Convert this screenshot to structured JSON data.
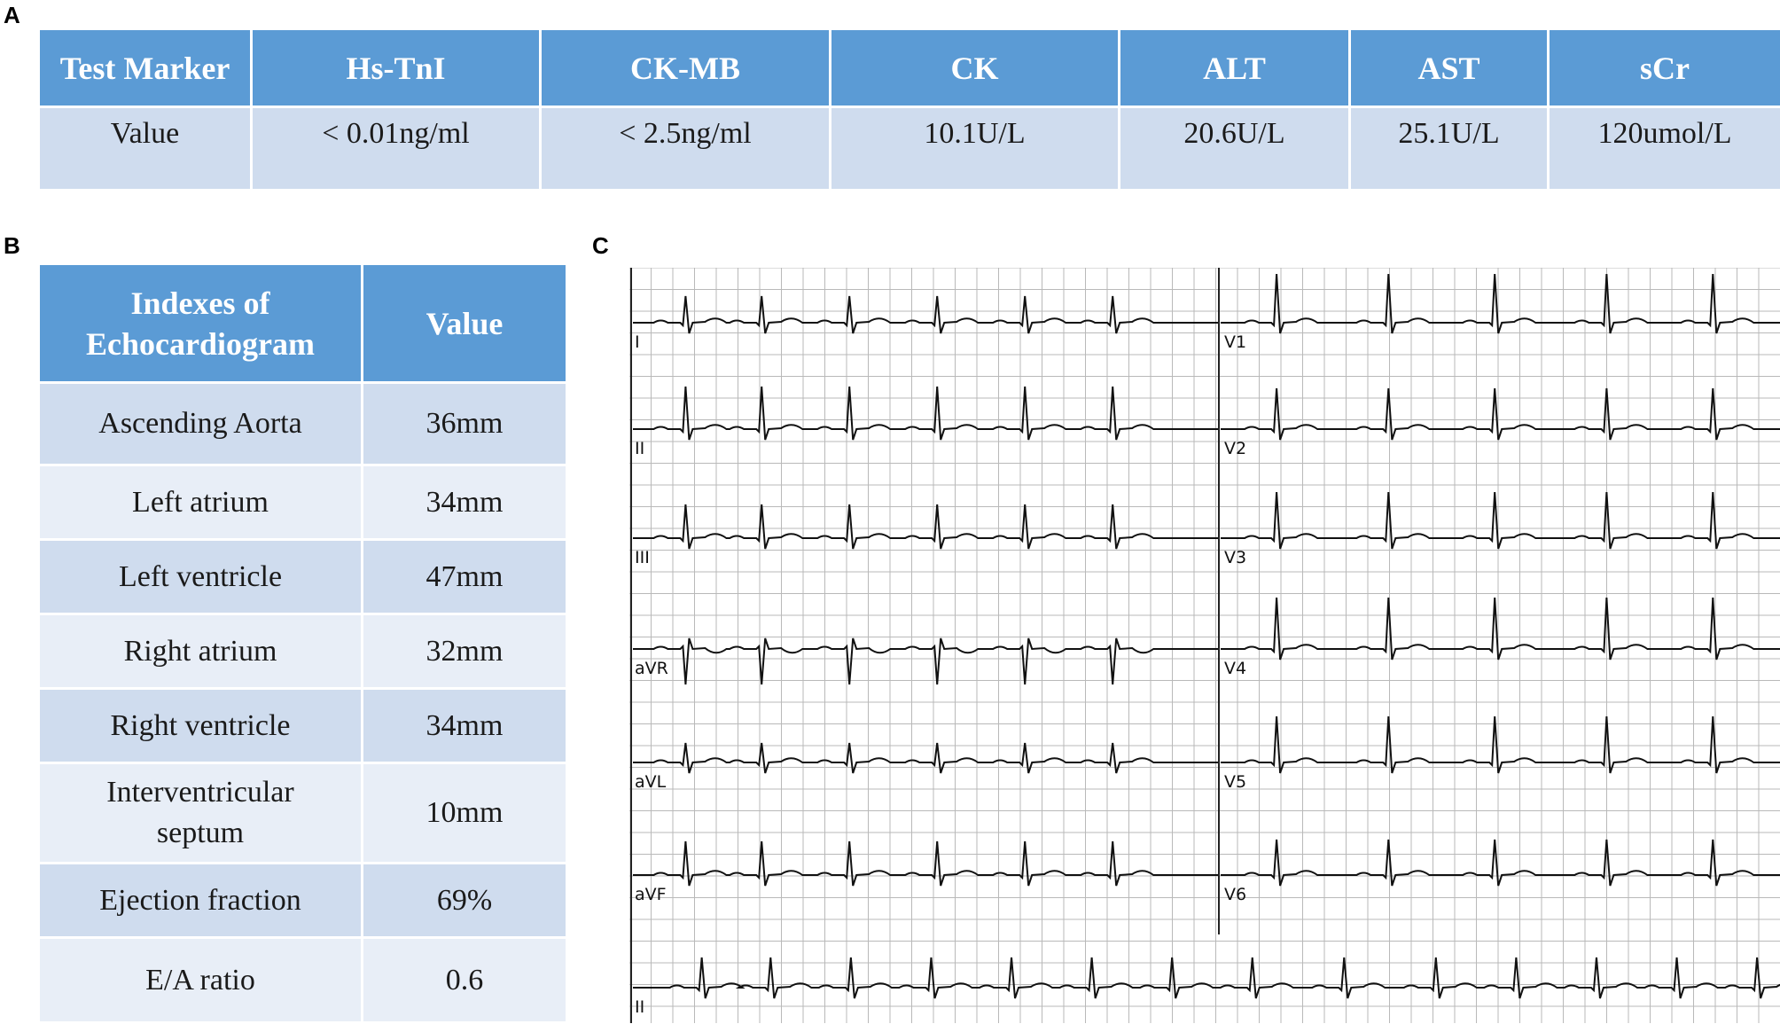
{
  "panels": {
    "a": "A",
    "b": "B",
    "c": "C"
  },
  "table_a": {
    "headers": [
      "Test Marker",
      "Hs-TnI",
      "CK-MB",
      "CK",
      "ALT",
      "AST",
      "sCr"
    ],
    "values": [
      "Value",
      "< 0.01ng/ml",
      "< 2.5ng/ml",
      "10.1U/L",
      "20.6U/L",
      "25.1U/L",
      "120umol/L"
    ]
  },
  "table_b": {
    "headers": [
      "Indexes of Echocardiogram",
      "Value"
    ],
    "rows": [
      {
        "index": "Ascending Aorta",
        "value": "36mm"
      },
      {
        "index": "Left atrium",
        "value": "34mm"
      },
      {
        "index": "Left ventricle",
        "value": "47mm"
      },
      {
        "index": "Right atrium",
        "value": "32mm"
      },
      {
        "index": "Right ventricle",
        "value": "34mm"
      },
      {
        "index": "Interventricular septum",
        "value": "10mm"
      },
      {
        "index": "Ejection fraction",
        "value": "69%"
      },
      {
        "index": "E/A ratio",
        "value": "0.6"
      }
    ]
  },
  "ecg": {
    "left_leads": [
      "I",
      "II",
      "III",
      "aVR",
      "aVL",
      "aVF",
      "II"
    ],
    "right_leads": [
      "V1",
      "V2",
      "V3",
      "V4",
      "V5",
      "V6"
    ]
  }
}
